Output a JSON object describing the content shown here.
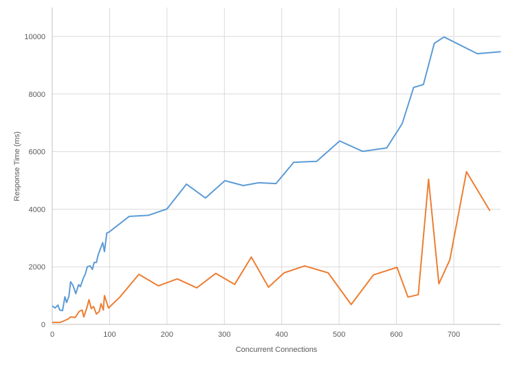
{
  "chart_data": {
    "type": "line",
    "title": "",
    "xlabel": "Concurrent Connections",
    "ylabel": "Response Time (ms)",
    "xlim": [
      0,
      785
    ],
    "ylim": [
      0,
      11000
    ],
    "xticks": [
      0,
      100,
      200,
      300,
      400,
      500,
      600,
      700
    ],
    "yticks": [
      0,
      2000,
      4000,
      6000,
      8000,
      10000
    ],
    "xtick_labels": [
      "0",
      "100",
      "200",
      "300",
      "400",
      "500",
      "600",
      "700"
    ],
    "ytick_labels": [
      "0",
      "2000",
      "4000",
      "6000",
      "8000",
      "10000"
    ],
    "grid": true,
    "legend": "none",
    "series": [
      {
        "name": "blue",
        "color": "#5B9BD5",
        "x": [
          0,
          5,
          10,
          13,
          18,
          22,
          25,
          29,
          32,
          36,
          41,
          46,
          49,
          54,
          58,
          61,
          66,
          70,
          73,
          77,
          80,
          88,
          91,
          95,
          100,
          134,
          168,
          200,
          234,
          267,
          301,
          333,
          360,
          390,
          421,
          461,
          501,
          541,
          583,
          610,
          630,
          647,
          666,
          683,
          741,
          782
        ],
        "y": [
          640,
          570,
          670,
          500,
          480,
          960,
          760,
          980,
          1480,
          1360,
          1070,
          1380,
          1310,
          1600,
          1770,
          2000,
          2030,
          1910,
          2150,
          2150,
          2410,
          2840,
          2530,
          3170,
          3220,
          3750,
          3790,
          4010,
          4870,
          4390,
          4990,
          4820,
          4920,
          4890,
          5630,
          5660,
          6370,
          6010,
          6130,
          6970,
          8230,
          8330,
          9760,
          9980,
          9400,
          9470
        ]
      },
      {
        "name": "orange",
        "color": "#ED7D31",
        "x": [
          0,
          7,
          14,
          20,
          28,
          32,
          40,
          47,
          52,
          55,
          61,
          64,
          68,
          72,
          77,
          82,
          85,
          89,
          91,
          98,
          118,
          151,
          185,
          218,
          252,
          285,
          318,
          347,
          377,
          404,
          440,
          481,
          521,
          560,
          601,
          620,
          638,
          656,
          674,
          693,
          722,
          763
        ],
        "y": [
          70,
          70,
          70,
          120,
          190,
          260,
          240,
          450,
          500,
          260,
          620,
          860,
          550,
          620,
          360,
          450,
          720,
          500,
          1000,
          570,
          950,
          1740,
          1340,
          1580,
          1270,
          1770,
          1390,
          2340,
          1290,
          1790,
          2030,
          1790,
          690,
          1720,
          1980,
          950,
          1030,
          5040,
          1410,
          2240,
          5300,
          3940
        ]
      }
    ]
  }
}
